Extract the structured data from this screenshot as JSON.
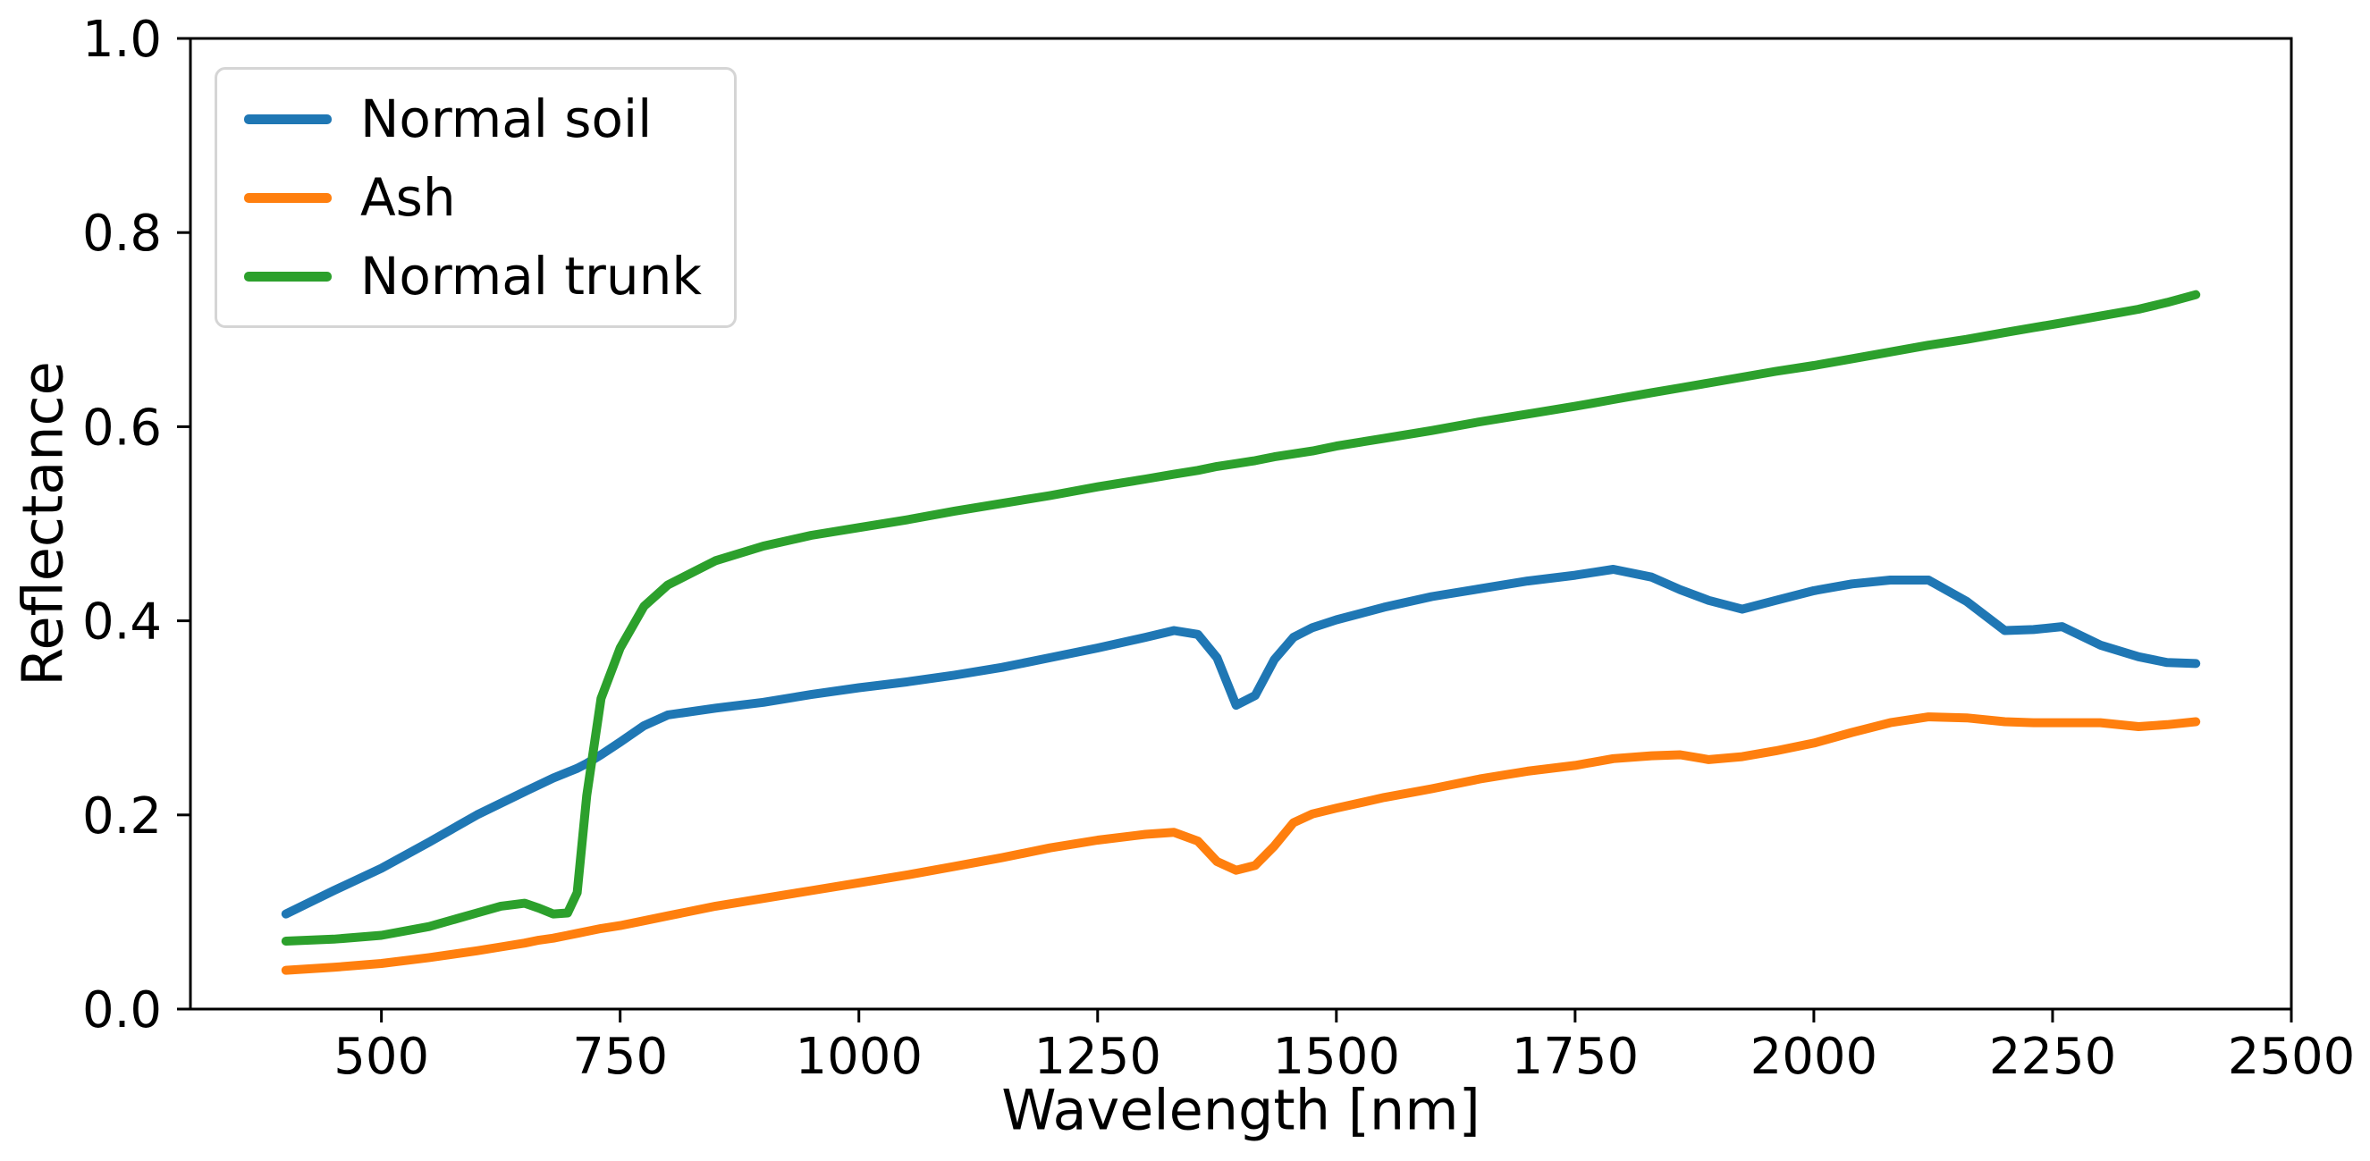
{
  "figure": {
    "background": "#ffffff",
    "text_color": "#000000",
    "spine_color": "#000000"
  },
  "chart_data": {
    "type": "line",
    "title": "",
    "xlabel": "Wavelength [nm]",
    "ylabel": "Reflectance",
    "xlim": [
      300,
      2500
    ],
    "ylim": [
      0.0,
      1.0
    ],
    "grid": false,
    "legend_position": "upper-left",
    "line_width": 10,
    "xticks": [
      {
        "value": 500,
        "label": "500"
      },
      {
        "value": 750,
        "label": "750"
      },
      {
        "value": 1000,
        "label": "1000"
      },
      {
        "value": 1250,
        "label": "1250"
      },
      {
        "value": 1500,
        "label": "1500"
      },
      {
        "value": 1750,
        "label": "1750"
      },
      {
        "value": 2000,
        "label": "2000"
      },
      {
        "value": 2250,
        "label": "2250"
      },
      {
        "value": 2500,
        "label": "2500"
      }
    ],
    "yticks": [
      {
        "value": 0.0,
        "label": "0.0"
      },
      {
        "value": 0.2,
        "label": "0.2"
      },
      {
        "value": 0.4,
        "label": "0.4"
      },
      {
        "value": 0.6,
        "label": "0.6"
      },
      {
        "value": 0.8,
        "label": "0.8"
      },
      {
        "value": 1.0,
        "label": "1.0"
      }
    ],
    "x": [
      400,
      450,
      500,
      550,
      600,
      625,
      650,
      665,
      680,
      695,
      705,
      715,
      730,
      750,
      775,
      800,
      850,
      900,
      950,
      1000,
      1050,
      1100,
      1150,
      1200,
      1250,
      1300,
      1330,
      1355,
      1375,
      1395,
      1415,
      1435,
      1455,
      1475,
      1500,
      1550,
      1600,
      1650,
      1700,
      1750,
      1790,
      1830,
      1860,
      1890,
      1925,
      1960,
      2000,
      2040,
      2080,
      2120,
      2160,
      2200,
      2230,
      2260,
      2300,
      2340,
      2370,
      2400
    ],
    "series": [
      {
        "name": "Normal soil",
        "color": "#1f77b4",
        "values": [
          0.098,
          0.122,
          0.145,
          0.172,
          0.2,
          0.212,
          0.224,
          0.231,
          0.238,
          0.244,
          0.248,
          0.253,
          0.262,
          0.275,
          0.292,
          0.303,
          0.31,
          0.316,
          0.324,
          0.331,
          0.337,
          0.344,
          0.352,
          0.362,
          0.372,
          0.383,
          0.39,
          0.386,
          0.362,
          0.313,
          0.323,
          0.36,
          0.383,
          0.393,
          0.401,
          0.414,
          0.425,
          0.433,
          0.441,
          0.447,
          0.453,
          0.445,
          0.432,
          0.421,
          0.412,
          0.421,
          0.431,
          0.438,
          0.442,
          0.442,
          0.42,
          0.39,
          0.391,
          0.394,
          0.375,
          0.363,
          0.357,
          0.356
        ]
      },
      {
        "name": "Ash",
        "color": "#ff7f0e",
        "values": [
          0.04,
          0.043,
          0.047,
          0.053,
          0.06,
          0.064,
          0.068,
          0.071,
          0.073,
          0.076,
          0.078,
          0.08,
          0.083,
          0.086,
          0.091,
          0.096,
          0.106,
          0.114,
          0.122,
          0.13,
          0.138,
          0.147,
          0.156,
          0.166,
          0.174,
          0.18,
          0.182,
          0.173,
          0.152,
          0.143,
          0.148,
          0.168,
          0.192,
          0.201,
          0.207,
          0.218,
          0.227,
          0.237,
          0.245,
          0.251,
          0.258,
          0.261,
          0.262,
          0.257,
          0.26,
          0.266,
          0.274,
          0.285,
          0.295,
          0.301,
          0.3,
          0.296,
          0.295,
          0.295,
          0.295,
          0.291,
          0.293,
          0.296
        ]
      },
      {
        "name": "Normal trunk",
        "color": "#2ca02c",
        "values": [
          0.07,
          0.072,
          0.076,
          0.085,
          0.099,
          0.106,
          0.109,
          0.104,
          0.098,
          0.099,
          0.12,
          0.22,
          0.32,
          0.372,
          0.415,
          0.437,
          0.462,
          0.477,
          0.488,
          0.496,
          0.504,
          0.513,
          0.521,
          0.529,
          0.538,
          0.546,
          0.551,
          0.555,
          0.559,
          0.562,
          0.565,
          0.569,
          0.572,
          0.575,
          0.58,
          0.588,
          0.596,
          0.605,
          0.613,
          0.621,
          0.628,
          0.635,
          0.64,
          0.645,
          0.651,
          0.657,
          0.663,
          0.67,
          0.677,
          0.684,
          0.69,
          0.697,
          0.702,
          0.707,
          0.714,
          0.721,
          0.728,
          0.736
        ]
      }
    ]
  }
}
